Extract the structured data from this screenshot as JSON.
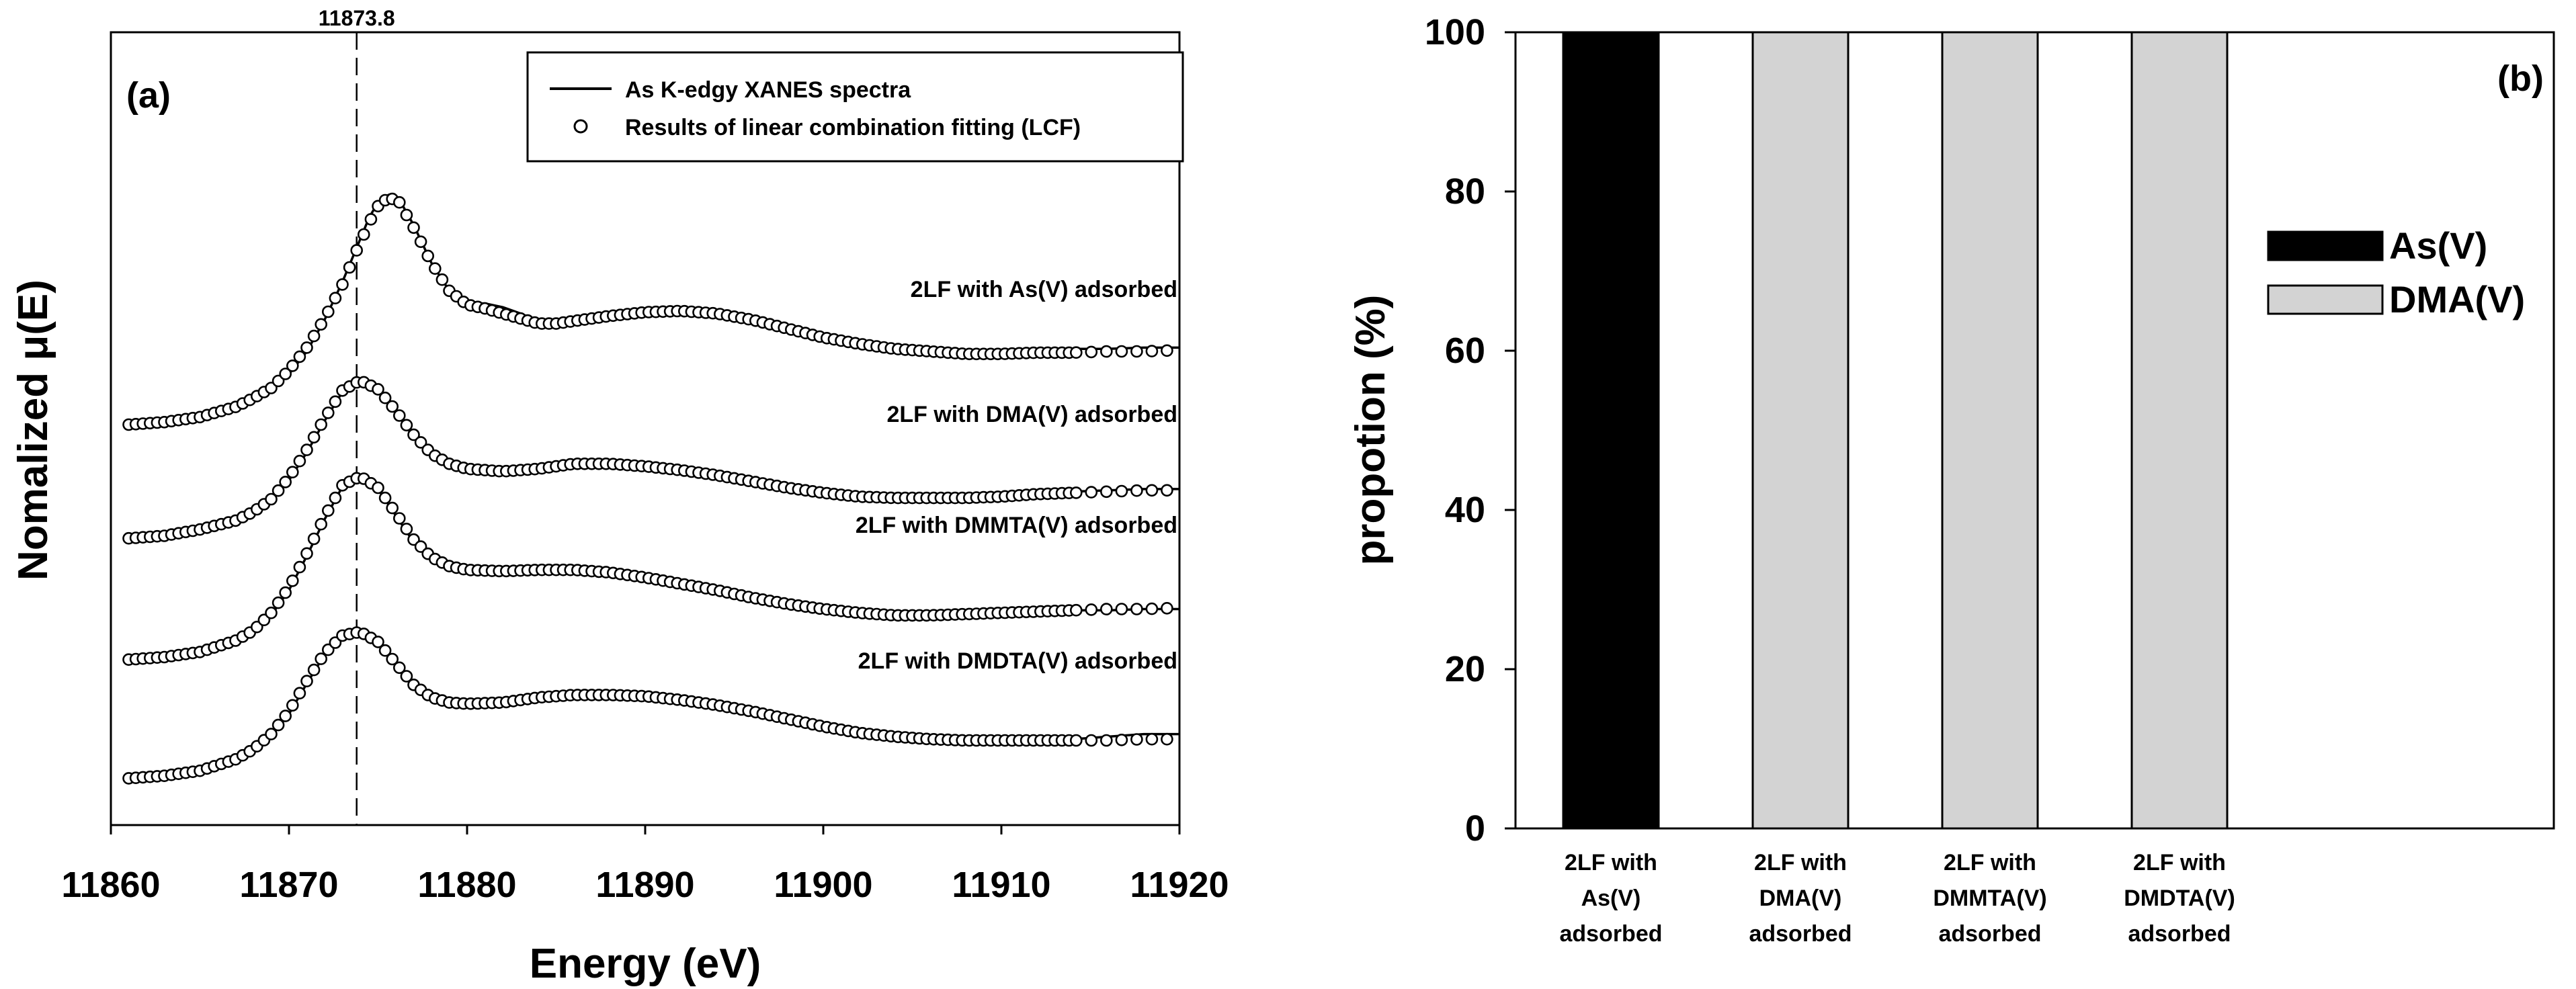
{
  "chart_data": [
    {
      "panel": "(a)",
      "type": "line",
      "title": "",
      "xlabel": "Energy (eV)",
      "ylabel": "Nomalized μ(E)",
      "xlim": [
        11860,
        11920
      ],
      "xticks": [
        "11860",
        "11870",
        "11880",
        "11890",
        "11900",
        "11910",
        "11920"
      ],
      "reference_line": {
        "x": 11873.8,
        "label": "11873.8",
        "style": "dashed"
      },
      "legend": {
        "position": "top-right",
        "entries": [
          {
            "name": "As K-edgy XANES spectra",
            "marker": "line"
          },
          {
            "name": "Results of linear combination fitting (LCF)",
            "marker": "open-circle"
          }
        ]
      },
      "series": [
        {
          "name": "2LF with As(V) adsorbed",
          "offset": 3.15,
          "x": [
            11861,
            11863,
            11865,
            11867,
            11868,
            11869,
            11870,
            11871,
            11872,
            11873,
            11873.8,
            11874.5,
            11875,
            11875.6,
            11876.2,
            11877,
            11878,
            11879,
            11880,
            11881,
            11882,
            11883,
            11884,
            11885,
            11886,
            11888,
            11890,
            11892,
            11894,
            11896,
            11898,
            11900,
            11902,
            11904,
            11906,
            11908,
            11910,
            11912,
            11914,
            11916,
            11918,
            11920
          ],
          "spectrum": [
            0.02,
            0.04,
            0.08,
            0.15,
            0.21,
            0.29,
            0.42,
            0.6,
            0.85,
            1.15,
            1.42,
            1.66,
            1.78,
            1.84,
            1.8,
            1.6,
            1.3,
            1.08,
            0.98,
            0.98,
            0.95,
            0.9,
            0.84,
            0.84,
            0.85,
            0.89,
            0.92,
            0.92,
            0.9,
            0.85,
            0.78,
            0.72,
            0.67,
            0.63,
            0.6,
            0.59,
            0.6,
            0.61,
            0.62,
            0.62,
            0.63,
            0.63
          ],
          "lcf": [
            0.02,
            0.04,
            0.08,
            0.16,
            0.23,
            0.31,
            0.45,
            0.63,
            0.86,
            1.13,
            1.4,
            1.62,
            1.75,
            1.82,
            1.78,
            1.58,
            1.3,
            1.08,
            0.97,
            0.94,
            0.9,
            0.86,
            0.82,
            0.82,
            0.84,
            0.88,
            0.91,
            0.92,
            0.9,
            0.85,
            0.78,
            0.71,
            0.66,
            0.62,
            0.6,
            0.58,
            0.58,
            0.59,
            0.59,
            0.6,
            0.6,
            0.61
          ]
        },
        {
          "name": "2LF with DMA(V) adsorbed",
          "offset": 2.25,
          "x": [
            11861,
            11863,
            11865,
            11867,
            11868,
            11869,
            11870,
            11871,
            11872,
            11873,
            11874,
            11875,
            11876,
            11877,
            11878,
            11879,
            11880,
            11882,
            11884,
            11886,
            11888,
            11890,
            11892,
            11894,
            11896,
            11898,
            11900,
            11902,
            11904,
            11906,
            11908,
            11910,
            11912,
            11914,
            11916,
            11918,
            11920
          ],
          "spectrum": [
            0.02,
            0.04,
            0.08,
            0.15,
            0.22,
            0.32,
            0.48,
            0.7,
            0.95,
            1.18,
            1.26,
            1.2,
            1.02,
            0.82,
            0.68,
            0.6,
            0.56,
            0.53,
            0.55,
            0.6,
            0.61,
            0.59,
            0.56,
            0.52,
            0.47,
            0.42,
            0.38,
            0.35,
            0.33,
            0.33,
            0.34,
            0.36,
            0.38,
            0.39,
            0.4,
            0.41,
            0.41
          ],
          "lcf": [
            0.02,
            0.04,
            0.09,
            0.16,
            0.23,
            0.33,
            0.5,
            0.72,
            0.97,
            1.19,
            1.27,
            1.2,
            1.03,
            0.84,
            0.69,
            0.61,
            0.57,
            0.55,
            0.57,
            0.61,
            0.61,
            0.59,
            0.56,
            0.52,
            0.47,
            0.42,
            0.38,
            0.35,
            0.34,
            0.34,
            0.34,
            0.35,
            0.37,
            0.38,
            0.39,
            0.4,
            0.4
          ]
        },
        {
          "name": "2LF with DMMTA(V) adsorbed",
          "offset": 1.3,
          "x": [
            11861,
            11863,
            11865,
            11867,
            11868,
            11869,
            11870,
            11871,
            11872,
            11873,
            11874,
            11875,
            11876,
            11877,
            11878,
            11879,
            11880,
            11882,
            11884,
            11886,
            11888,
            11890,
            11892,
            11894,
            11896,
            11898,
            11900,
            11902,
            11904,
            11906,
            11908,
            11910,
            11912,
            11914,
            11916,
            11918,
            11920
          ],
          "spectrum": [
            0.01,
            0.03,
            0.07,
            0.15,
            0.23,
            0.36,
            0.56,
            0.83,
            1.12,
            1.38,
            1.45,
            1.36,
            1.15,
            0.94,
            0.8,
            0.73,
            0.7,
            0.69,
            0.7,
            0.71,
            0.69,
            0.65,
            0.6,
            0.55,
            0.49,
            0.44,
            0.4,
            0.37,
            0.35,
            0.35,
            0.36,
            0.38,
            0.39,
            0.4,
            0.4,
            0.41,
            0.41
          ],
          "lcf": [
            0.01,
            0.03,
            0.07,
            0.16,
            0.24,
            0.38,
            0.58,
            0.85,
            1.14,
            1.39,
            1.46,
            1.37,
            1.17,
            0.96,
            0.82,
            0.75,
            0.72,
            0.71,
            0.72,
            0.72,
            0.7,
            0.66,
            0.61,
            0.56,
            0.5,
            0.45,
            0.41,
            0.38,
            0.36,
            0.36,
            0.37,
            0.38,
            0.39,
            0.4,
            0.41,
            0.41,
            0.42
          ]
        },
        {
          "name": "2LF with DMDTA(V) adsorbed",
          "offset": 0.35,
          "x": [
            11861,
            11863,
            11865,
            11867,
            11868,
            11869,
            11870,
            11871,
            11872,
            11873,
            11874,
            11875,
            11876,
            11877,
            11878,
            11879,
            11880,
            11882,
            11884,
            11886,
            11888,
            11890,
            11892,
            11894,
            11896,
            11898,
            11900,
            11902,
            11904,
            11906,
            11908,
            11910,
            11912,
            11914,
            11916,
            11918,
            11920
          ],
          "spectrum": [
            0.02,
            0.04,
            0.08,
            0.16,
            0.23,
            0.35,
            0.53,
            0.77,
            1.0,
            1.15,
            1.18,
            1.1,
            0.92,
            0.75,
            0.65,
            0.61,
            0.6,
            0.62,
            0.67,
            0.68,
            0.67,
            0.65,
            0.62,
            0.58,
            0.54,
            0.5,
            0.44,
            0.38,
            0.34,
            0.34,
            0.33,
            0.35,
            0.33,
            0.33,
            0.35,
            0.37,
            0.37
          ],
          "lcf": [
            0.02,
            0.04,
            0.08,
            0.17,
            0.25,
            0.37,
            0.55,
            0.79,
            1.01,
            1.15,
            1.18,
            1.1,
            0.93,
            0.76,
            0.66,
            0.62,
            0.61,
            0.62,
            0.66,
            0.68,
            0.68,
            0.67,
            0.64,
            0.6,
            0.55,
            0.49,
            0.43,
            0.38,
            0.35,
            0.33,
            0.32,
            0.32,
            0.32,
            0.32,
            0.32,
            0.33,
            0.33
          ]
        }
      ]
    },
    {
      "panel": "(b)",
      "type": "bar",
      "title": "",
      "xlabel": "",
      "ylabel": "propotion (%)",
      "ylim": [
        0,
        100
      ],
      "yticks": [
        "0",
        "20",
        "40",
        "60",
        "80",
        "100"
      ],
      "categories": [
        [
          "2LF with",
          "As(V)",
          "adsorbed"
        ],
        [
          "2LF with",
          "DMA(V)",
          "adsorbed"
        ],
        [
          "2LF with",
          "DMMTA(V)",
          "adsorbed"
        ],
        [
          "2LF with",
          "DMDTA(V)",
          "adsorbed"
        ]
      ],
      "series": [
        {
          "name": "As(V)",
          "color": "#000000",
          "values": [
            100,
            0,
            0,
            0
          ]
        },
        {
          "name": "DMA(V)",
          "color": "#d3d3d3",
          "values": [
            0,
            100,
            100,
            100
          ]
        }
      ],
      "legend": {
        "position": "upper-right"
      }
    }
  ]
}
